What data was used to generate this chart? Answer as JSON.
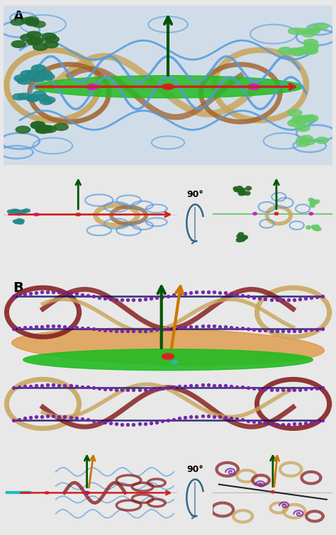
{
  "background_color": "#e8e8e8",
  "panel_bg_A": "#dde8f0",
  "panel_bg_B": "#e8e8e8",
  "sub_bg": "#f0f0f0",
  "label_fontsize": 14,
  "colors": {
    "dna_blue": "#5599dd",
    "dna_blue2": "#4477cc",
    "histone_tan": "#c8a45a",
    "histone_brown": "#a0622a",
    "green_plane": "#22bb22",
    "orange_plane": "#dd8822",
    "dark_green_sphere": "#226622",
    "teal_sphere": "#228888",
    "light_green_sphere": "#66cc66",
    "magenta_sphere": "#cc22cc",
    "red_sphere": "#dd2222",
    "cyan_sphere": "#22bbbb",
    "dark_green_arrow": "#005500",
    "orange_arrow": "#cc7700",
    "red_axis": "#cc2222",
    "purple_dots": "#7722aa",
    "navy_line": "#111166",
    "dark_red_ribbon": "#882222",
    "rotation_arrow": "#336688",
    "white": "#ffffff",
    "gray_line": "#888888"
  }
}
